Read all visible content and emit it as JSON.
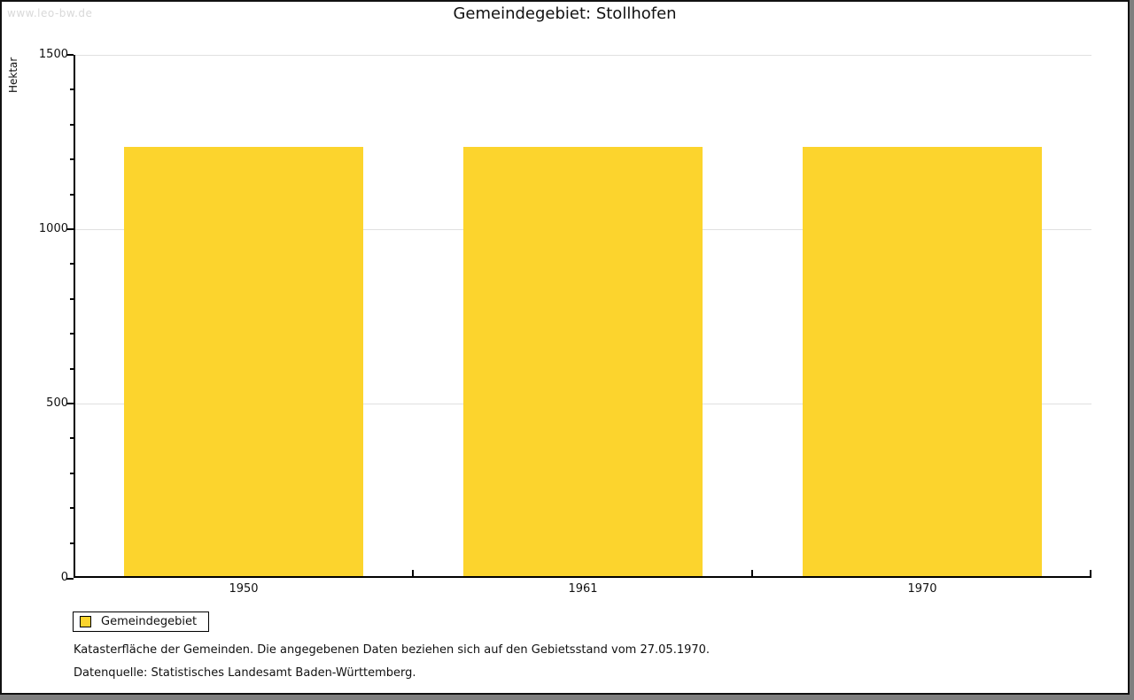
{
  "watermark": {
    "text": "www.leo-bw.de"
  },
  "chart_data": {
    "type": "bar",
    "title": "Gemeindegebiet: Stollhofen",
    "xlabel": "",
    "ylabel": "Hektar",
    "categories": [
      "1950",
      "1961",
      "1970"
    ],
    "series": [
      {
        "name": "Gemeindegebiet",
        "color": "#FCD42D",
        "values": [
          1236,
          1236,
          1236
        ]
      }
    ],
    "ylim": [
      0,
      1500
    ],
    "y_major_step": 500,
    "y_minor_step": 100,
    "grid": "horizontal-major",
    "legend_position": "bottom-left"
  },
  "legend": {
    "items": [
      {
        "label": "Gemeindegebiet",
        "color": "#FCD42D"
      }
    ]
  },
  "footer": {
    "line1": "Katasterfläche der Gemeinden. Die angegebenen Daten beziehen sich auf den Gebietsstand vom 27.05.1970.",
    "line2": "Datenquelle: Statistisches Landesamt Baden-Württemberg."
  },
  "colors": {
    "bar": "#FCD42D",
    "grid": "#E0E0E0",
    "axis": "#000000",
    "watermark": "#D9D9D9",
    "frame_shadow": "#7F7F7F"
  }
}
